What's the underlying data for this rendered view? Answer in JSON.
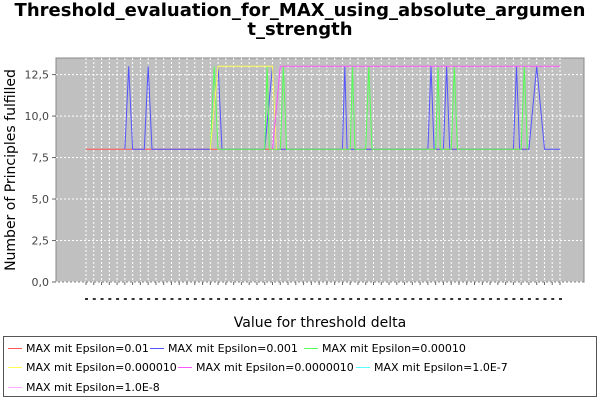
{
  "chart_data": {
    "type": "line",
    "title": "Threshold_evaluation_for_MAX_using_absolute_argumen t_strength",
    "title_lines": [
      "Threshold_evaluation_for_MAX_using_absolute_argumen",
      "t_strength"
    ],
    "xlabel": "Value for threshold delta",
    "ylabel": "Number of Principles fulfilled",
    "ylim": [
      0,
      13.5
    ],
    "yticks": [
      "0,0",
      "2,5",
      "5,0",
      "7,5",
      "10,0",
      "12,5"
    ],
    "ytick_values": [
      0,
      2.5,
      5,
      7.5,
      10,
      12.5
    ],
    "x_count": 62,
    "grid": true,
    "background": "#c0c0c0",
    "legend_position": "bottom",
    "series": [
      {
        "name": "MAX mit Epsilon=0.01",
        "color": "#ff5555",
        "points": [
          [
            0,
            8
          ],
          [
            9,
            8
          ],
          [
            9.4,
            8
          ],
          [
            17,
            8
          ],
          [
            26,
            8
          ],
          [
            37,
            8
          ],
          [
            55,
            8
          ],
          [
            57,
            8
          ]
        ]
      },
      {
        "name": "MAX mit Epsilon=0.001",
        "color": "#5555ff",
        "points": [
          [
            5,
            8
          ],
          [
            5.5,
            13
          ],
          [
            6,
            8
          ],
          [
            7.5,
            8
          ],
          [
            8,
            13
          ],
          [
            8.5,
            8
          ],
          [
            16,
            8
          ],
          [
            17,
            13
          ],
          [
            17.5,
            8
          ],
          [
            23,
            8
          ],
          [
            24,
            13
          ],
          [
            24.5,
            8
          ],
          [
            33,
            8
          ],
          [
            33.3,
            13
          ],
          [
            33.6,
            8
          ],
          [
            44,
            8
          ],
          [
            44.4,
            13
          ],
          [
            44.8,
            8
          ],
          [
            46,
            8
          ],
          [
            46.4,
            13
          ],
          [
            46.8,
            8
          ],
          [
            55,
            8
          ],
          [
            55.4,
            13
          ],
          [
            55.8,
            8
          ],
          [
            57,
            8
          ],
          [
            58,
            13
          ],
          [
            59,
            8
          ],
          [
            61,
            8
          ]
        ]
      },
      {
        "name": "MAX mit Epsilon=0.00010",
        "color": "#55ff55",
        "points": [
          [
            16,
            8
          ],
          [
            16.5,
            13
          ],
          [
            17,
            8
          ],
          [
            23,
            8
          ],
          [
            23.3,
            13
          ],
          [
            23.6,
            8
          ],
          [
            25,
            8
          ],
          [
            25.4,
            13
          ],
          [
            25.8,
            8
          ],
          [
            34,
            8
          ],
          [
            34.3,
            13
          ],
          [
            34.6,
            8
          ],
          [
            36,
            8
          ],
          [
            36.4,
            13
          ],
          [
            36.8,
            8
          ],
          [
            45,
            8
          ],
          [
            45.3,
            13
          ],
          [
            45.6,
            8
          ],
          [
            47,
            8
          ],
          [
            47.4,
            13
          ],
          [
            47.8,
            8
          ],
          [
            56,
            8
          ],
          [
            56.4,
            13
          ],
          [
            56.8,
            8
          ]
        ]
      },
      {
        "name": "MAX mit Epsilon=0.000010",
        "color": "#ffff55",
        "points": [
          [
            16,
            8
          ],
          [
            17,
            13
          ],
          [
            24,
            13
          ],
          [
            24.5,
            8
          ]
        ]
      },
      {
        "name": "MAX mit Epsilon=0.0000010",
        "color": "#ff55ff",
        "points": [
          [
            24,
            8
          ],
          [
            25,
            13
          ],
          [
            61,
            13
          ]
        ]
      },
      {
        "name": "MAX mit Epsilon=1.0E-7",
        "color": "#55ffff",
        "points": []
      },
      {
        "name": "MAX mit Epsilon=1.0E-8",
        "color": "#ffaaff",
        "points": []
      }
    ]
  }
}
